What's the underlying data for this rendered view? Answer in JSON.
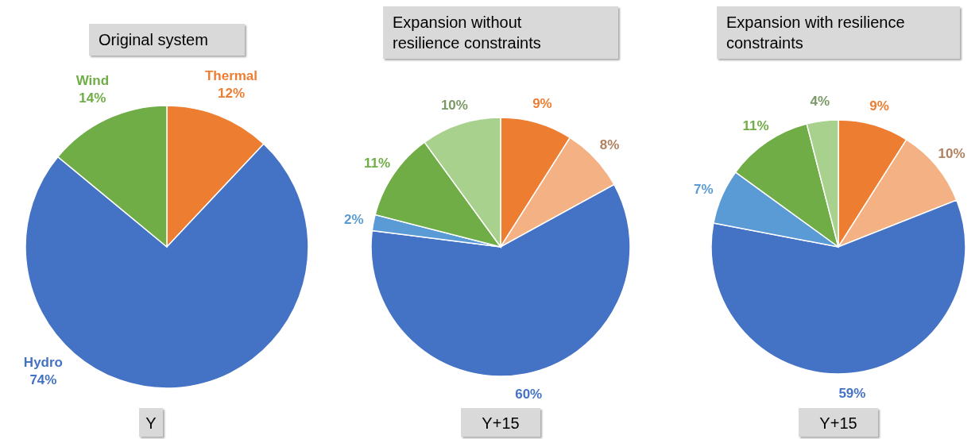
{
  "chart_data": [
    {
      "type": "pie",
      "title": "Original system",
      "xlabel": "Y",
      "categories": [
        "Thermal",
        "Hydro",
        "Wind"
      ],
      "values": [
        12,
        74,
        14
      ],
      "value_labels": [
        "12%",
        "74%",
        "14%"
      ],
      "colors": [
        "#ed7d31",
        "#4472c4",
        "#70ad47"
      ]
    },
    {
      "type": "pie",
      "title": "Expansion without resilience constraints",
      "xlabel": "Y+15",
      "categories": [
        null,
        null,
        null,
        null,
        null,
        null
      ],
      "values": [
        9,
        8,
        60,
        2,
        11,
        10
      ],
      "value_labels": [
        "9%",
        "8%",
        "60%",
        "2%",
        "11%",
        "10%"
      ],
      "colors": [
        "#ed7d31",
        "#f4b183",
        "#4472c4",
        "#5b9bd5",
        "#70ad47",
        "#a9d18e"
      ]
    },
    {
      "type": "pie",
      "title": "Expansion with resilience constraints",
      "xlabel": "Y+15",
      "categories": [
        null,
        null,
        null,
        null,
        null,
        null
      ],
      "values": [
        9,
        10,
        59,
        7,
        11,
        4
      ],
      "value_labels": [
        "9%",
        "10%",
        "59%",
        "7%",
        "11%",
        "4%"
      ],
      "colors": [
        "#ed7d31",
        "#f4b183",
        "#4472c4",
        "#5b9bd5",
        "#70ad47",
        "#a9d18e"
      ]
    }
  ]
}
